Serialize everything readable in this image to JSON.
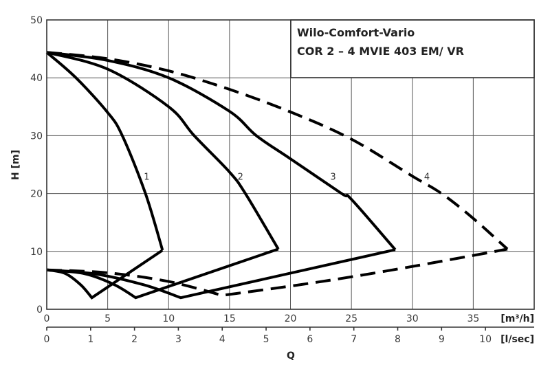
{
  "chart_data": {
    "type": "line",
    "title": "Wilo-Comfort-Vario COR 2 - 4 MVIE 403 EM/VR",
    "title_lines": [
      "Wilo-Comfort-Vario",
      "COR 2 – 4 MVIE 403 EM/ VR"
    ],
    "xlabel": "Q",
    "ylabel": "H [m]",
    "x_unit_primary": "[m³/h]",
    "x_unit_secondary": "[l/sec]",
    "xlim": [
      0,
      40
    ],
    "ylim": [
      0,
      50
    ],
    "x_ticks": [
      0,
      5,
      10,
      15,
      20,
      25,
      30,
      35
    ],
    "x_ticks_secondary": [
      0,
      1,
      2,
      3,
      4,
      5,
      6,
      7,
      8,
      9,
      10
    ],
    "y_ticks": [
      0,
      10,
      20,
      30,
      40,
      50
    ],
    "grid": true,
    "series": [
      {
        "name": "1",
        "style": "solid",
        "upper_curve": [
          [
            0,
            44.4
          ],
          [
            2.4,
            40
          ],
          [
            5,
            34
          ],
          [
            6.2,
            30
          ],
          [
            8.1,
            20
          ],
          [
            9.5,
            10.2
          ]
        ],
        "lower_curve": [
          [
            0,
            6.8
          ],
          [
            1.5,
            6.2
          ],
          [
            2.8,
            4.2
          ],
          [
            3.7,
            2.0
          ],
          [
            9.5,
            10.2
          ]
        ],
        "label_pos": [
          8.2,
          23
        ]
      },
      {
        "name": "2",
        "style": "solid",
        "upper_curve": [
          [
            0,
            44.4
          ],
          [
            5,
            41.5
          ],
          [
            10,
            35
          ],
          [
            12.1,
            30
          ],
          [
            15,
            23.7
          ],
          [
            16.3,
            20
          ],
          [
            19,
            10.4
          ]
        ],
        "lower_curve": [
          [
            0,
            6.8
          ],
          [
            3,
            6.2
          ],
          [
            5.5,
            4.3
          ],
          [
            7.3,
            2.0
          ],
          [
            19,
            10.4
          ]
        ],
        "label_pos": [
          15.9,
          23
        ]
      },
      {
        "name": "3",
        "style": "solid",
        "upper_curve": [
          [
            0,
            44.4
          ],
          [
            5,
            43
          ],
          [
            10,
            40
          ],
          [
            15,
            34.2
          ],
          [
            17.2,
            30
          ],
          [
            20,
            26
          ],
          [
            24.2,
            20
          ],
          [
            25,
            19
          ],
          [
            28.6,
            10.3
          ]
        ],
        "lower_curve": [
          [
            0,
            6.8
          ],
          [
            4,
            6.1
          ],
          [
            8,
            4.2
          ],
          [
            11,
            2.0
          ],
          [
            28.6,
            10.3
          ]
        ],
        "label_pos": [
          23.5,
          23
        ]
      },
      {
        "name": "4",
        "style": "dashed",
        "upper_curve": [
          [
            0,
            44.4
          ],
          [
            5,
            43.3
          ],
          [
            10,
            41.2
          ],
          [
            15,
            38
          ],
          [
            20,
            34.1
          ],
          [
            25,
            29.4
          ],
          [
            30,
            23
          ],
          [
            32.4,
            20
          ],
          [
            35,
            15.7
          ],
          [
            37.8,
            10.4
          ]
        ],
        "lower_curve": [
          [
            0,
            6.8
          ],
          [
            5,
            6.3
          ],
          [
            10,
            4.8
          ],
          [
            14.4,
            2.4
          ],
          [
            20,
            4.0
          ],
          [
            25,
            5.6
          ],
          [
            30,
            7.4
          ],
          [
            35,
            9.3
          ],
          [
            37.8,
            10.4
          ]
        ],
        "label_pos": [
          31.2,
          23
        ]
      }
    ]
  }
}
